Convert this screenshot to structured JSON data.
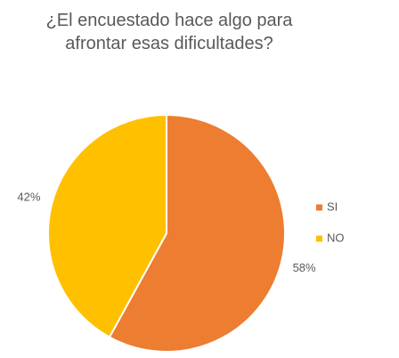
{
  "chart_data": {
    "type": "pie",
    "title": "¿El encuestado hace algo para afrontar esas dificultades?",
    "categories": [
      "SI",
      "NO"
    ],
    "values": [
      58,
      42
    ],
    "value_labels": [
      "58%",
      "42%"
    ],
    "colors": [
      "#ED7D31",
      "#FFC000"
    ],
    "legend": "right"
  }
}
